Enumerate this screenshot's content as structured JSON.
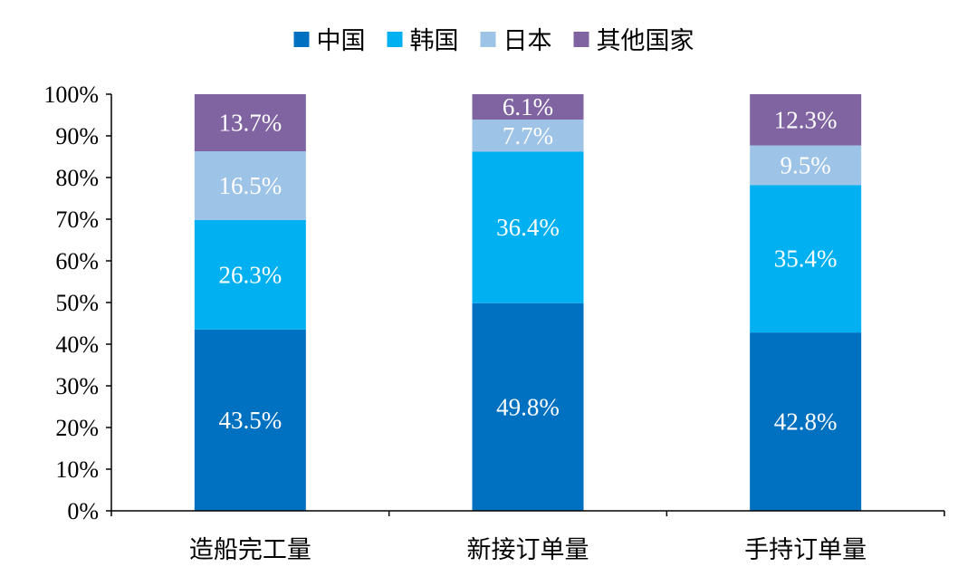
{
  "chart_data": {
    "type": "bar",
    "stacked": true,
    "categories": [
      "造船完工量",
      "新接订单量",
      "手持订单量"
    ],
    "series": [
      {
        "name": "中国",
        "color": "#0070C0",
        "values": [
          43.5,
          49.8,
          42.8
        ],
        "labels": [
          "43.5%",
          "49.8%",
          "42.8%"
        ]
      },
      {
        "name": "韩国",
        "color": "#00B0F0",
        "values": [
          26.3,
          36.4,
          35.4
        ],
        "labels": [
          "26.3%",
          "36.4%",
          "35.4%"
        ]
      },
      {
        "name": "日本",
        "color": "#9DC3E6",
        "values": [
          16.5,
          7.7,
          9.5
        ],
        "labels": [
          "16.5%",
          "7.7%",
          "9.5%"
        ]
      },
      {
        "name": "其他国家",
        "color": "#8064A2",
        "values": [
          13.7,
          6.1,
          12.3
        ],
        "labels": [
          "13.7%",
          "6.1%",
          "12.3%"
        ]
      }
    ],
    "yticks": [
      "0%",
      "10%",
      "20%",
      "30%",
      "40%",
      "50%",
      "60%",
      "70%",
      "80%",
      "90%",
      "100%"
    ],
    "ylim": [
      0,
      100
    ],
    "legend_position": "top",
    "grid": false
  }
}
